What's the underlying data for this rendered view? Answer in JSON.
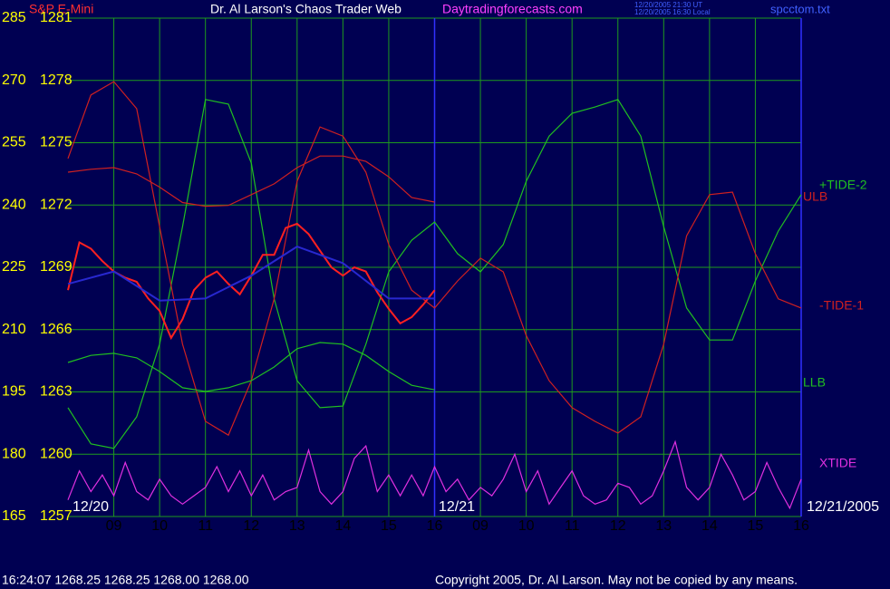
{
  "chart_data": {
    "type": "line",
    "title": "Dr. Al Larson's Chaos Trader Web",
    "instrument": "S&P E-Mini",
    "website": "Daytradingforecasts.com",
    "timestamp_lines": [
      "12/20/2005 21:30 UT",
      "12/20/2005 16:30 Local"
    ],
    "file_name": "spcctom.txt",
    "date_labels": [
      "12/20",
      "12/21",
      "12/21/2005"
    ],
    "quote_line": "16:24:07  1268.25 1268.25 1268.00 1268.00",
    "copyright": "Copyright 2005, Dr. Al Larson. May not be copied by any means.",
    "xlim": [
      0,
      16
    ],
    "xticks": [
      {
        "value": 1,
        "label": "09"
      },
      {
        "value": 2,
        "label": "10"
      },
      {
        "value": 3,
        "label": "11"
      },
      {
        "value": 4,
        "label": "12"
      },
      {
        "value": 5,
        "label": "13"
      },
      {
        "value": 6,
        "label": "14"
      },
      {
        "value": 7,
        "label": "15"
      },
      {
        "value": 8,
        "label": "16"
      },
      {
        "value": 9,
        "label": "09"
      },
      {
        "value": 10,
        "label": "10"
      },
      {
        "value": 11,
        "label": "11"
      },
      {
        "value": 12,
        "label": "12"
      },
      {
        "value": 13,
        "label": "13"
      },
      {
        "value": 14,
        "label": "14"
      },
      {
        "value": 15,
        "label": "15"
      },
      {
        "value": 16,
        "label": "16"
      }
    ],
    "session_lines": [
      8,
      16
    ],
    "ylim": [
      165,
      285
    ],
    "yticks": [
      165,
      180,
      195,
      210,
      225,
      240,
      255,
      270,
      285
    ],
    "y2lim": [
      1257,
      1281
    ],
    "y2ticks": [
      1257,
      1260,
      1263,
      1266,
      1269,
      1272,
      1275,
      1278,
      1281
    ],
    "grid": true,
    "series": [
      {
        "name": "+TIDE-2",
        "color": "#20c020",
        "x": [
          0,
          0.5,
          1,
          1.5,
          2,
          2.5,
          3,
          3.5,
          4,
          4.5,
          5,
          5.5,
          6,
          6.5,
          7,
          7.5,
          8,
          8.5,
          9,
          9.5,
          10,
          10.5,
          11,
          11.5,
          12,
          12.5,
          13,
          13.5,
          14,
          14.5,
          15,
          15.5,
          16
        ],
        "values": [
          191.2,
          182.5,
          181.4,
          189,
          206.5,
          234.8,
          265.4,
          264.3,
          250.1,
          217.4,
          197.7,
          191.2,
          191.6,
          206.5,
          223.9,
          231.5,
          235.9,
          228.3,
          223.9,
          230.5,
          245.7,
          256.6,
          262.1,
          263.6,
          265.4,
          256.6,
          234.8,
          215.2,
          207.5,
          207.5,
          221.7,
          233.7,
          242.5
        ]
      },
      {
        "name": "ULB",
        "color": "#d02020",
        "x": [
          0,
          0.5,
          1,
          1.5,
          2,
          2.5,
          3,
          3.5,
          4,
          4.5,
          5,
          5.5,
          6,
          6.5,
          7,
          7.5,
          8
        ],
        "values": [
          247.9,
          248.6,
          249,
          247.5,
          244.3,
          240.6,
          239.7,
          239.9,
          242.5,
          245.1,
          249,
          251.8,
          251.8,
          250.5,
          246.8,
          241.8,
          240.7
        ]
      },
      {
        "name": "-TIDE-1",
        "color": "#d02020",
        "x": [
          0,
          0.5,
          1,
          1.5,
          2,
          2.5,
          3,
          3.5,
          4,
          4.5,
          5,
          5.5,
          6,
          6.5,
          7,
          7.5,
          8,
          8.5,
          9,
          9.5,
          10,
          10.5,
          11,
          11.5,
          12,
          12.5,
          13,
          13.5,
          14,
          14.5,
          15,
          15.5,
          16
        ],
        "values": [
          251.2,
          266.5,
          269.7,
          263.2,
          234.8,
          206.5,
          187.9,
          184.6,
          197.7,
          217.4,
          245.7,
          258.8,
          256.6,
          247.9,
          230.5,
          219.5,
          215.2,
          221.7,
          227.2,
          223.9,
          208.6,
          197.7,
          191.2,
          187.9,
          185.1,
          189,
          206.5,
          232.6,
          242.5,
          243.1,
          228.3,
          217.4,
          215.2
        ]
      },
      {
        "name": "LLB",
        "color": "#20c020",
        "x": [
          0,
          0.5,
          1,
          1.5,
          2,
          2.5,
          3,
          3.5,
          4,
          4.5,
          5,
          5.5,
          6,
          6.5,
          7,
          7.5,
          8
        ],
        "values": [
          202.1,
          203.8,
          204.3,
          203.2,
          199.9,
          196,
          195.1,
          196,
          197.7,
          201,
          205.4,
          206.9,
          206.5,
          203.8,
          199.9,
          196.6,
          195.5
        ]
      },
      {
        "name": "XTIDE",
        "color": "#e030e0",
        "x": [
          0,
          0.25,
          0.5,
          0.75,
          1,
          1.25,
          1.5,
          1.75,
          2,
          2.25,
          2.5,
          2.75,
          3,
          3.25,
          3.5,
          3.75,
          4,
          4.25,
          4.5,
          4.75,
          5,
          5.25,
          5.5,
          5.75,
          6,
          6.25,
          6.5,
          6.75,
          7,
          7.25,
          7.5,
          7.75,
          8,
          8.25,
          8.5,
          8.75,
          9,
          9.25,
          9.5,
          9.75,
          10,
          10.25,
          10.5,
          10.75,
          11,
          11.25,
          11.5,
          11.75,
          12,
          12.25,
          12.5,
          12.75,
          13,
          13.25,
          13.5,
          13.75,
          14,
          14.25,
          14.5,
          14.75,
          15,
          15.25,
          15.5,
          15.75,
          16
        ],
        "values": [
          169,
          176,
          171,
          175,
          170,
          178,
          171,
          169,
          174,
          170,
          168,
          170,
          172,
          177,
          171,
          176,
          170,
          175,
          169,
          171,
          172,
          181,
          171,
          168,
          171,
          179,
          182,
          171,
          175,
          170,
          175,
          170,
          177,
          171,
          174,
          169,
          172,
          170,
          174,
          180,
          171,
          176,
          168,
          172,
          176,
          170,
          168,
          169,
          173,
          172,
          168,
          170,
          176,
          183,
          172,
          169,
          172,
          180,
          175,
          169,
          171,
          178,
          172,
          167,
          174
        ]
      },
      {
        "color": "#ff2020",
        "axis": "y2",
        "x": [
          0,
          0.25,
          0.5,
          0.75,
          1,
          1.25,
          1.5,
          1.75,
          2,
          2.25,
          2.5,
          2.75,
          3,
          3.25,
          3.5,
          3.75,
          4,
          4.25,
          4.5,
          4.75,
          5,
          5.25,
          5.5,
          5.75,
          6,
          6.25,
          6.5,
          6.75,
          7,
          7.25,
          7.5,
          7.75,
          8
        ],
        "values": [
          1267.9,
          1270.2,
          1269.9,
          1269.3,
          1268.8,
          1268.5,
          1268.3,
          1267.5,
          1266.9,
          1265.6,
          1266.5,
          1267.9,
          1268.5,
          1268.8,
          1268.2,
          1267.7,
          1268.6,
          1269.6,
          1269.6,
          1270.9,
          1271.1,
          1270.6,
          1269.8,
          1269.0,
          1268.6,
          1269.0,
          1268.8,
          1267.8,
          1267.0,
          1266.3,
          1266.6,
          1267.2,
          1267.9
        ]
      },
      {
        "color": "#2828d0",
        "axis": "y2",
        "x": [
          0,
          1,
          2,
          3,
          4,
          5,
          6,
          7,
          8
        ],
        "values": [
          1268.2,
          1268.8,
          1267.4,
          1267.5,
          1268.6,
          1270.0,
          1269.2,
          1267.5,
          1267.5
        ]
      }
    ]
  }
}
